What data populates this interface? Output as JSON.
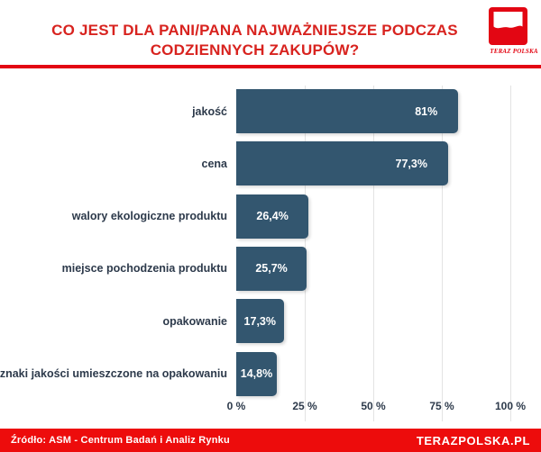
{
  "palette": {
    "red_title": "#d8231f",
    "red_brand": "#ed0c0c",
    "red_divider": "#e30613",
    "bar_fill": "#33566f",
    "text_dark": "#2d3a4b",
    "gridline": "#e3e3e3",
    "value_text": "#ffffff"
  },
  "header": {
    "title_line1": "CO JEST DLA PANI/PANA NAJWAŻNIEJSZE PODCZAS",
    "title_line2": "CODZIENNYCH ZAKUPÓW?",
    "logo_caption": "TERAZ POLSKA"
  },
  "chart_data": {
    "type": "bar",
    "orientation": "horizontal",
    "title": "CO JEST DLA PANI/PANA NAJWAŻNIEJSZE PODCZAS CODZIENNYCH ZAKUPÓW?",
    "categories": [
      "jakość",
      "cena",
      "walory ekologiczne produktu",
      "miejsce pochodzenia produktu",
      "opakowanie",
      "znaki jakości umieszczone na opakowaniu"
    ],
    "values": [
      81,
      77.3,
      26.4,
      25.7,
      17.3,
      14.8
    ],
    "value_labels": [
      "81%",
      "77,3%",
      "26,4%",
      "25,7%",
      "17,3%",
      "14,8%"
    ],
    "xlim": [
      0,
      100
    ],
    "x_tick_values": [
      0,
      25,
      50,
      75,
      100
    ],
    "x_tick_labels": [
      "0 %",
      "25 %",
      "50 %",
      "75 %",
      "100 %"
    ],
    "grid": "vertical",
    "legend": "none",
    "bar_color": "#33566f"
  },
  "footer": {
    "source": "Źródło: ASM - Centrum Badań i Analiz Rynku",
    "site": "TERAZPOLSKA.PL"
  }
}
